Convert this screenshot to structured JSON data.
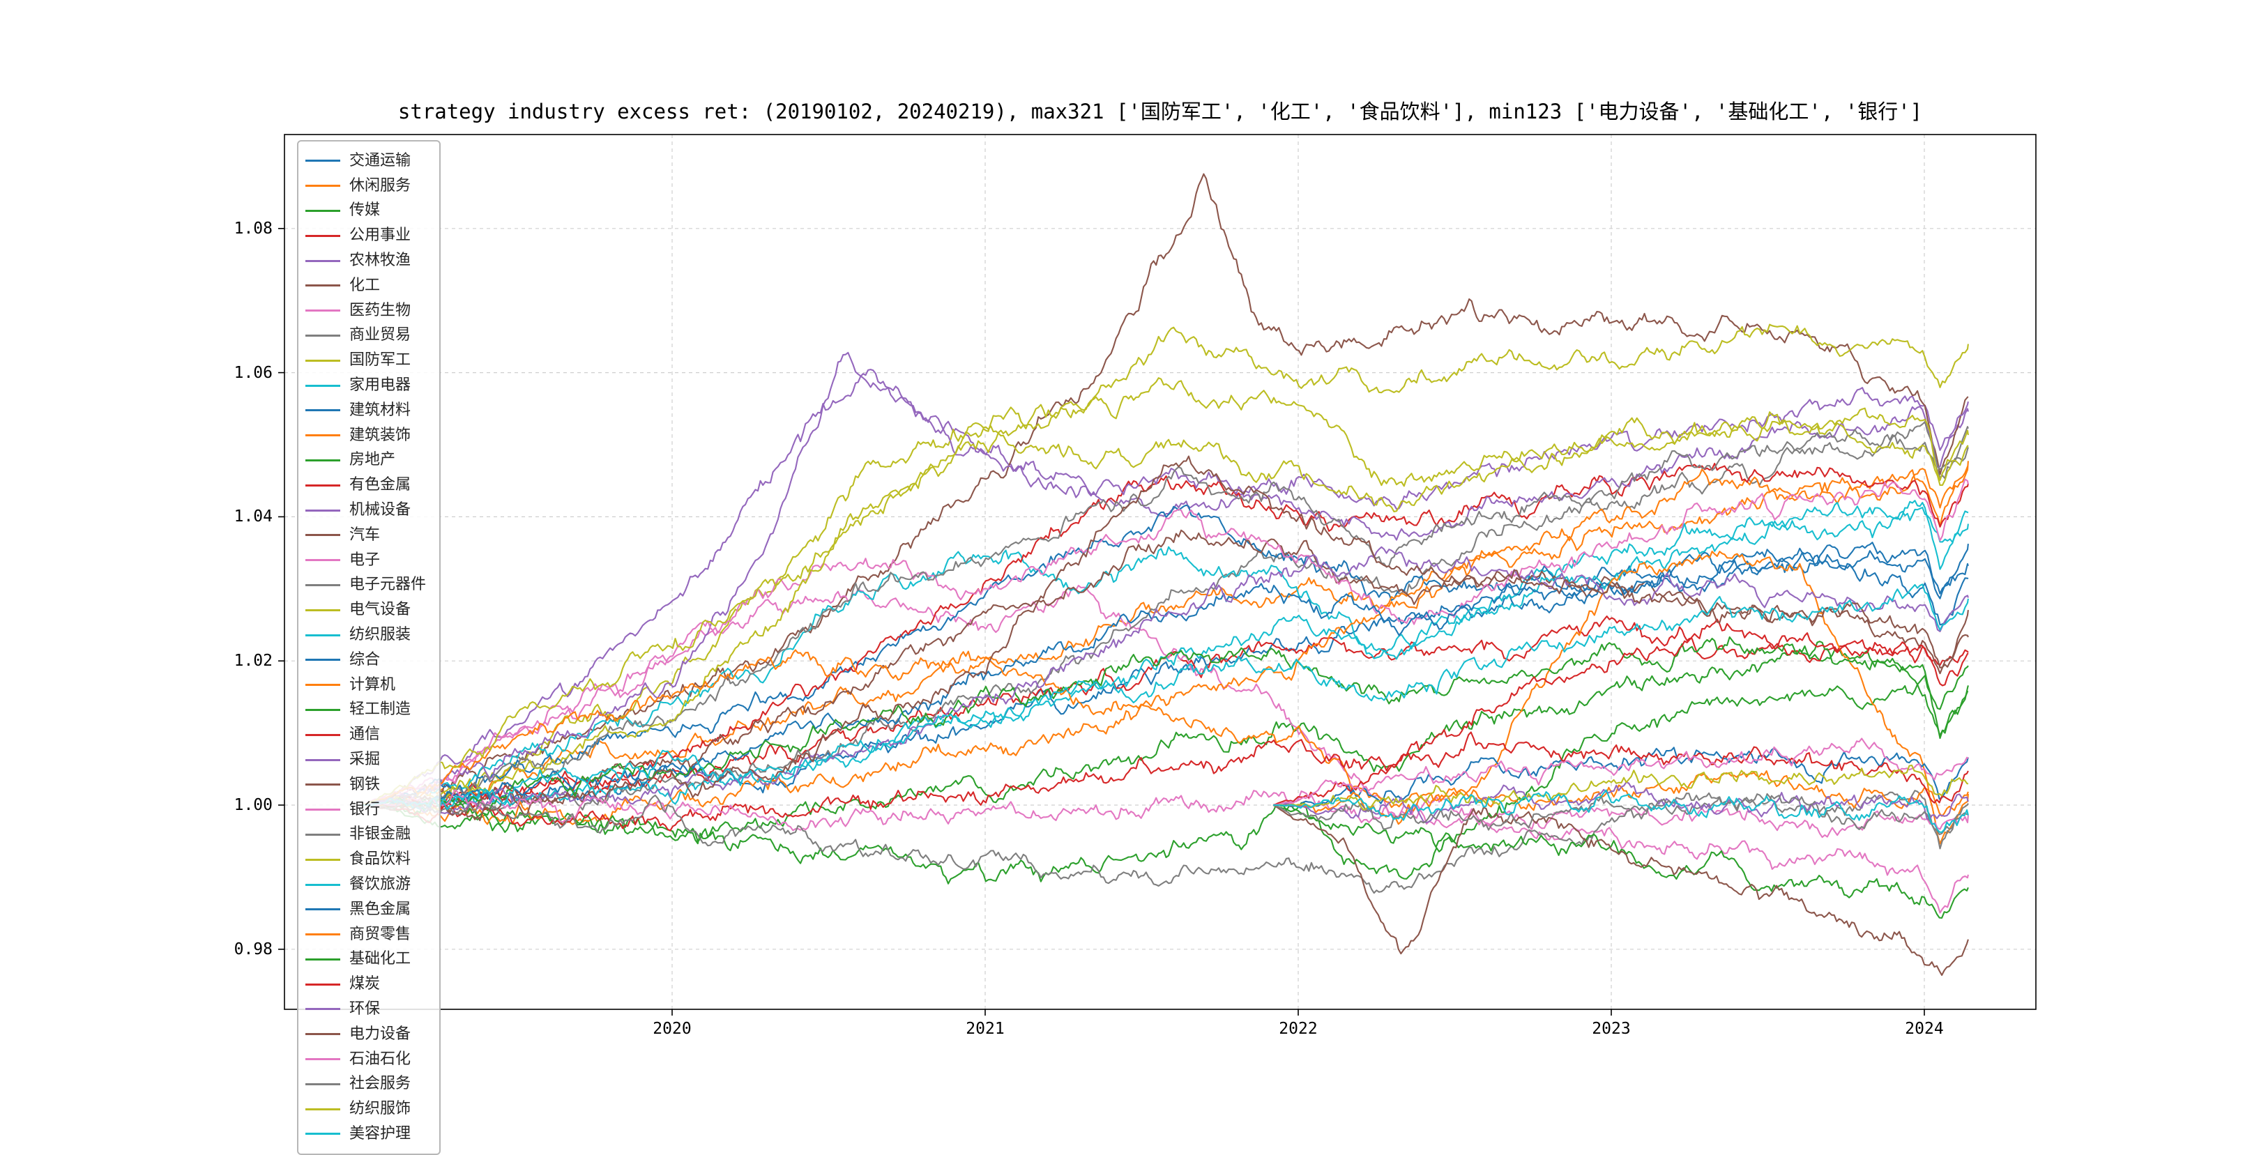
{
  "title": "strategy industry excess ret: (20190102, 20240219), max321 ['国防军工', '化工', '食品饮料'], min123 ['电力设备', '基础化工', '银行']",
  "chart_data": {
    "type": "line",
    "title": "strategy industry excess ret: (20190102, 20240219), max321 ['国防军工', '化工', '食品饮料'], min123 ['电力设备', '基础化工', '银行']",
    "xlabel": "",
    "ylabel": "",
    "xlim": [
      2018.88,
      2024.27
    ],
    "ylim": [
      0.972,
      1.093
    ],
    "grid": "dashed",
    "legend_position": "upper-left",
    "x_tick_values": [
      2020,
      2021,
      2022,
      2023,
      2024
    ],
    "x_tick_labels": [
      "2020",
      "2021",
      "2022",
      "2023",
      "2024"
    ],
    "y_tick_values": [
      0.98,
      1.0,
      1.02,
      1.04,
      1.06,
      1.08
    ],
    "y_tick_labels": [
      "0.98",
      "1.00",
      "1.02",
      "1.04",
      "1.06",
      "1.08"
    ],
    "max321": [
      "国防军工",
      "化工",
      "食品饮料"
    ],
    "min123": [
      "电力设备",
      "基础化工",
      "银行"
    ],
    "date_range": [
      "20190102",
      "20240219"
    ],
    "t_old": [
      2019.01,
      2019.3,
      2019.6,
      2020.0,
      2020.3,
      2020.6,
      2021.0,
      2021.3,
      2021.6,
      2022.0,
      2022.3,
      2022.6,
      2023.0,
      2023.3,
      2023.6,
      2024.0,
      2024.05,
      2024.14
    ],
    "t_new": [
      2021.92,
      2022.0,
      2022.3,
      2022.6,
      2023.0,
      2023.3,
      2023.6,
      2024.0,
      2024.05,
      2024.14
    ],
    "series": [
      {
        "name": "交通运输",
        "color": "#1f77b4",
        "grid": "old",
        "values": [
          1.0,
          1.001,
          1.002,
          1.004,
          1.005,
          1.008,
          1.012,
          1.015,
          1.02,
          1.022,
          1.025,
          1.027,
          1.03,
          1.032,
          1.033,
          1.035,
          1.031,
          1.035
        ]
      },
      {
        "name": "休闲服务",
        "color": "#ff7f0e",
        "grid": "old",
        "values": [
          1.0,
          1.002,
          1.005,
          1.008,
          1.012,
          1.015,
          1.02,
          1.022,
          1.028,
          1.03,
          1.028,
          1.033,
          1.038,
          1.04,
          1.043,
          1.046,
          1.041,
          1.048
        ]
      },
      {
        "name": "传媒",
        "color": "#2ca02c",
        "grid": "old",
        "values": [
          1.0,
          0.999,
          0.998,
          0.997,
          0.998,
          1.0,
          1.002,
          1.005,
          1.008,
          1.01,
          1.005,
          1.012,
          1.015,
          1.018,
          1.02,
          1.018,
          1.01,
          1.017
        ]
      },
      {
        "name": "公用事业",
        "color": "#d62728",
        "grid": "old",
        "values": [
          1.0,
          1.001,
          1.003,
          1.004,
          1.006,
          1.01,
          1.014,
          1.016,
          1.02,
          1.022,
          1.02,
          1.022,
          1.024,
          1.022,
          1.021,
          1.02,
          1.018,
          1.021
        ]
      },
      {
        "name": "农林牧渔",
        "color": "#9467bd",
        "grid": "old",
        "values": [
          1.0,
          1.005,
          1.015,
          1.028,
          1.045,
          1.06,
          1.05,
          1.045,
          1.04,
          1.045,
          1.042,
          1.046,
          1.05,
          1.052,
          1.055,
          1.057,
          1.05,
          1.055
        ]
      },
      {
        "name": "化工",
        "color": "#8c564b",
        "points": [
          [
            2019.01,
            1.0
          ],
          [
            2019.3,
            1.003
          ],
          [
            2019.6,
            1.008
          ],
          [
            2020.0,
            1.015
          ],
          [
            2020.3,
            1.02
          ],
          [
            2020.6,
            1.03
          ],
          [
            2021.0,
            1.045
          ],
          [
            2021.3,
            1.058
          ],
          [
            2021.6,
            1.078
          ],
          [
            2021.7,
            1.088
          ],
          [
            2021.85,
            1.068
          ],
          [
            2022.0,
            1.062
          ],
          [
            2022.3,
            1.066
          ],
          [
            2022.6,
            1.068
          ],
          [
            2023.0,
            1.067
          ],
          [
            2023.3,
            1.066
          ],
          [
            2023.6,
            1.065
          ],
          [
            2024.0,
            1.056
          ],
          [
            2024.05,
            1.048
          ],
          [
            2024.14,
            1.056
          ]
        ]
      },
      {
        "name": "医药生物",
        "color": "#e377c2",
        "grid": "old",
        "values": [
          1.0,
          1.005,
          1.012,
          1.02,
          1.028,
          1.03,
          1.025,
          1.03,
          1.02,
          1.01,
          1.0,
          0.998,
          0.995,
          0.994,
          0.993,
          0.99,
          0.985,
          0.991
        ]
      },
      {
        "name": "商业贸易",
        "color": "#7f7f7f",
        "grid": "old",
        "values": [
          1.0,
          1.0,
          1.001,
          1.003,
          1.006,
          1.01,
          1.015,
          1.02,
          1.03,
          1.035,
          1.03,
          1.038,
          1.042,
          1.045,
          1.048,
          1.05,
          1.044,
          1.05
        ]
      },
      {
        "name": "国防军工",
        "color": "#bcbd22",
        "grid": "old",
        "values": [
          1.0,
          1.002,
          1.01,
          1.018,
          1.03,
          1.045,
          1.052,
          1.055,
          1.066,
          1.06,
          1.058,
          1.062,
          1.062,
          1.064,
          1.065,
          1.064,
          1.058,
          1.063
        ]
      },
      {
        "name": "家用电器",
        "color": "#17becf",
        "grid": "old",
        "values": [
          1.0,
          1.003,
          1.008,
          1.015,
          1.02,
          1.028,
          1.035,
          1.03,
          1.035,
          1.03,
          1.02,
          1.028,
          1.035,
          1.038,
          1.04,
          1.04,
          1.036,
          1.04
        ]
      },
      {
        "name": "建筑材料",
        "color": "#1f77b4",
        "grid": "old",
        "values": [
          1.0,
          1.002,
          1.005,
          1.01,
          1.015,
          1.02,
          1.03,
          1.035,
          1.04,
          1.035,
          1.03,
          1.03,
          1.032,
          1.034,
          1.034,
          1.033,
          1.028,
          1.033
        ]
      },
      {
        "name": "建筑装饰",
        "color": "#ff7f0e",
        "grid": "old",
        "values": [
          1.0,
          0.999,
          0.999,
          1.0,
          1.002,
          1.005,
          1.008,
          1.01,
          1.015,
          1.02,
          1.028,
          1.035,
          1.04,
          1.045,
          1.044,
          1.046,
          1.042,
          1.047
        ]
      },
      {
        "name": "房地产",
        "color": "#2ca02c",
        "grid": "old",
        "values": [
          1.0,
          0.999,
          0.997,
          0.996,
          0.995,
          0.993,
          0.99,
          0.992,
          0.995,
          0.998,
          0.99,
          1.0,
          1.01,
          1.013,
          1.015,
          1.016,
          1.01,
          1.016
        ]
      },
      {
        "name": "有色金属",
        "color": "#d62728",
        "grid": "old",
        "values": [
          1.0,
          1.001,
          1.003,
          1.006,
          1.012,
          1.02,
          1.03,
          1.04,
          1.045,
          1.04,
          1.038,
          1.042,
          1.044,
          1.045,
          1.046,
          1.044,
          1.039,
          1.045
        ]
      },
      {
        "name": "机械设备",
        "color": "#9467bd",
        "points": [
          [
            2019.01,
            1.0
          ],
          [
            2019.3,
            1.003
          ],
          [
            2019.6,
            1.008
          ],
          [
            2020.0,
            1.018
          ],
          [
            2020.3,
            1.035
          ],
          [
            2020.55,
            1.063
          ],
          [
            2020.7,
            1.058
          ],
          [
            2021.0,
            1.048
          ],
          [
            2021.3,
            1.042
          ],
          [
            2021.6,
            1.046
          ],
          [
            2022.0,
            1.042
          ],
          [
            2022.3,
            1.036
          ],
          [
            2022.6,
            1.042
          ],
          [
            2023.0,
            1.044
          ],
          [
            2023.3,
            1.048
          ],
          [
            2023.6,
            1.051
          ],
          [
            2024.0,
            1.054
          ],
          [
            2024.05,
            1.047
          ],
          [
            2024.14,
            1.055
          ]
        ]
      },
      {
        "name": "汽车",
        "color": "#8c564b",
        "grid": "old",
        "values": [
          1.0,
          1.0,
          1.002,
          1.005,
          1.01,
          1.018,
          1.025,
          1.03,
          1.038,
          1.035,
          1.03,
          1.032,
          1.03,
          1.028,
          1.026,
          1.024,
          1.018,
          1.025
        ]
      },
      {
        "name": "电子",
        "color": "#e377c2",
        "grid": "old",
        "values": [
          1.0,
          1.005,
          1.012,
          1.02,
          1.03,
          1.035,
          1.03,
          1.035,
          1.04,
          1.035,
          1.025,
          1.03,
          1.035,
          1.04,
          1.042,
          1.044,
          1.037,
          1.045
        ]
      },
      {
        "name": "电子元器件",
        "color": "#7f7f7f",
        "grid": "old",
        "values": [
          1.0,
          1.002,
          1.006,
          1.012,
          1.02,
          1.03,
          1.035,
          1.04,
          1.045,
          1.042,
          1.035,
          1.04,
          1.045,
          1.048,
          1.05,
          1.052,
          1.045,
          1.052
        ]
      },
      {
        "name": "电气设备",
        "color": "#bcbd22",
        "grid": "old",
        "values": [
          1.0,
          1.002,
          1.006,
          1.012,
          1.025,
          1.04,
          1.05,
          1.055,
          1.058,
          1.055,
          1.045,
          1.048,
          1.05,
          1.052,
          1.053,
          1.054,
          1.047,
          1.053
        ]
      },
      {
        "name": "纺织服装",
        "color": "#17becf",
        "grid": "old",
        "values": [
          1.0,
          1.0,
          1.001,
          1.003,
          1.005,
          1.008,
          1.012,
          1.016,
          1.02,
          1.025,
          1.02,
          1.028,
          1.033,
          1.036,
          1.038,
          1.04,
          1.034,
          1.04
        ]
      },
      {
        "name": "综合",
        "color": "#1f77b4",
        "grid": "old",
        "values": [
          1.0,
          1.001,
          1.002,
          1.005,
          1.008,
          1.012,
          1.018,
          1.022,
          1.028,
          1.03,
          1.025,
          1.028,
          1.03,
          1.032,
          1.033,
          1.03,
          1.024,
          1.031
        ]
      },
      {
        "name": "计算机",
        "color": "#ff7f0e",
        "grid": "old",
        "values": [
          1.0,
          1.004,
          1.01,
          1.015,
          1.02,
          1.018,
          1.02,
          1.015,
          1.012,
          1.008,
          0.998,
          1.005,
          1.03,
          1.035,
          1.032,
          1.005,
          0.995,
          1.0
        ]
      },
      {
        "name": "轻工制造",
        "color": "#2ca02c",
        "grid": "old",
        "values": [
          1.0,
          1.0,
          1.002,
          1.005,
          1.008,
          1.012,
          1.015,
          1.018,
          1.022,
          1.02,
          1.015,
          1.018,
          1.02,
          1.022,
          1.021,
          1.018,
          1.013,
          1.019
        ]
      },
      {
        "name": "通信",
        "color": "#d62728",
        "grid": "old",
        "values": [
          1.0,
          0.999,
          0.998,
          0.998,
          0.999,
          1.0,
          1.002,
          1.004,
          1.006,
          1.008,
          1.005,
          1.012,
          1.02,
          1.025,
          1.024,
          1.022,
          1.016,
          1.022
        ]
      },
      {
        "name": "采掘",
        "color": "#9467bd",
        "grid": "old",
        "values": [
          1.0,
          1.0,
          1.001,
          1.002,
          1.004,
          1.008,
          1.014,
          1.02,
          1.028,
          1.032,
          1.035,
          1.033,
          1.03,
          1.03,
          1.029,
          1.028,
          1.024,
          1.029
        ]
      },
      {
        "name": "钢铁",
        "color": "#8c564b",
        "grid": "old",
        "values": [
          1.0,
          1.0,
          1.001,
          1.003,
          1.006,
          1.012,
          1.02,
          1.035,
          1.048,
          1.04,
          1.035,
          1.032,
          1.03,
          1.028,
          1.026,
          1.024,
          1.019,
          1.025
        ]
      },
      {
        "name": "银行",
        "color": "#e377c2",
        "grid": "old",
        "values": [
          1.0,
          1.0,
          0.999,
          0.999,
          0.998,
          0.998,
          0.999,
          1.0,
          1.0,
          1.001,
          0.999,
          0.999,
          0.999,
          0.999,
          0.998,
          0.997,
          0.996,
          0.998
        ]
      },
      {
        "name": "非银金融",
        "color": "#7f7f7f",
        "grid": "old",
        "values": [
          1.0,
          0.999,
          0.998,
          0.997,
          0.995,
          0.994,
          0.992,
          0.99,
          0.99,
          0.992,
          0.988,
          0.994,
          0.998,
          1.0,
          1.0,
          0.999,
          0.994,
          1.0
        ]
      },
      {
        "name": "食品饮料",
        "color": "#bcbd22",
        "grid": "old",
        "values": [
          1.0,
          1.006,
          1.014,
          1.022,
          1.03,
          1.04,
          1.052,
          1.048,
          1.05,
          1.046,
          1.042,
          1.046,
          1.05,
          1.052,
          1.052,
          1.05,
          1.045,
          1.05
        ]
      },
      {
        "name": "餐饮旅游",
        "color": "#17becf",
        "grid": "old",
        "values": [
          1.0,
          1.001,
          1.003,
          1.005,
          1.004,
          1.008,
          1.012,
          1.015,
          1.018,
          1.02,
          1.015,
          1.02,
          1.024,
          1.026,
          1.027,
          1.028,
          1.023,
          1.028
        ]
      },
      {
        "name": "黑色金属",
        "color": "#1f77b4",
        "grid": "new",
        "values": [
          1.0,
          1.0,
          1.002,
          1.004,
          1.006,
          1.007,
          1.006,
          1.005,
          1.002,
          1.006
        ]
      },
      {
        "name": "商贸零售",
        "color": "#ff7f0e",
        "grid": "new",
        "values": [
          1.0,
          1.0,
          0.999,
          1.0,
          1.002,
          1.003,
          1.003,
          1.002,
          0.999,
          1.003
        ]
      },
      {
        "name": "基础化工",
        "color": "#2ca02c",
        "grid": "new",
        "values": [
          1.0,
          0.999,
          0.996,
          0.995,
          0.993,
          0.992,
          0.99,
          0.987,
          0.983,
          0.988
        ]
      },
      {
        "name": "煤炭",
        "color": "#d62728",
        "grid": "new",
        "values": [
          1.0,
          1.001,
          1.006,
          1.008,
          1.007,
          1.006,
          1.005,
          1.004,
          1.002,
          1.005
        ]
      },
      {
        "name": "环保",
        "color": "#9467bd",
        "grid": "new",
        "values": [
          1.0,
          1.0,
          0.999,
          1.0,
          1.001,
          1.001,
          1.0,
          1.0,
          0.997,
          1.0
        ]
      },
      {
        "name": "电力设备",
        "color": "#8c564b",
        "points": [
          [
            2021.92,
            1.0
          ],
          [
            2022.0,
            0.998
          ],
          [
            2022.15,
            0.995
          ],
          [
            2022.33,
            0.978
          ],
          [
            2022.55,
            0.999
          ],
          [
            2022.8,
            0.997
          ],
          [
            2023.0,
            0.994
          ],
          [
            2023.3,
            0.99
          ],
          [
            2023.6,
            0.986
          ],
          [
            2023.9,
            0.981
          ],
          [
            2024.05,
            0.977
          ],
          [
            2024.14,
            0.98
          ]
        ]
      },
      {
        "name": "石油石化",
        "color": "#e377c2",
        "grid": "new",
        "values": [
          1.0,
          1.001,
          1.003,
          1.005,
          1.006,
          1.007,
          1.007,
          1.006,
          1.004,
          1.007
        ]
      },
      {
        "name": "社会服务",
        "color": "#7f7f7f",
        "grid": "new",
        "values": [
          1.0,
          0.999,
          0.997,
          0.998,
          1.0,
          1.0,
          0.999,
          0.998,
          0.995,
          0.999
        ]
      },
      {
        "name": "纺织服饰",
        "color": "#bcbd22",
        "grid": "new",
        "values": [
          1.0,
          1.0,
          1.001,
          1.002,
          1.003,
          1.004,
          1.004,
          1.004,
          1.002,
          1.004
        ]
      },
      {
        "name": "美容护理",
        "color": "#17becf",
        "grid": "new",
        "values": [
          1.0,
          1.0,
          0.999,
          1.0,
          1.001,
          1.0,
          1.0,
          0.999,
          0.997,
          1.0
        ]
      }
    ]
  }
}
